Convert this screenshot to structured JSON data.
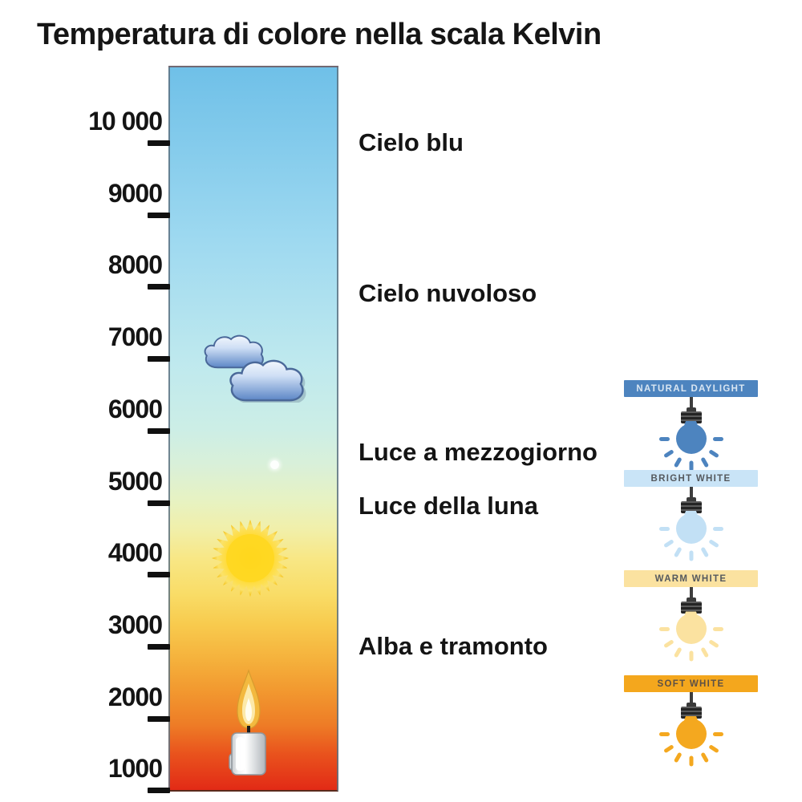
{
  "title": "Temperatura di colore nella scala Kelvin",
  "scale": {
    "unit": "Kelvin",
    "marks": [
      {
        "label": "10 000",
        "value": 10000
      },
      {
        "label": "9000",
        "value": 9000
      },
      {
        "label": "8000",
        "value": 8000
      },
      {
        "label": "7000",
        "value": 7000
      },
      {
        "label": "6000",
        "value": 6000
      },
      {
        "label": "5000",
        "value": 5000
      },
      {
        "label": "4000",
        "value": 4000
      },
      {
        "label": "3000",
        "value": 3000
      },
      {
        "label": "2000",
        "value": 2000
      },
      {
        "label": "1000",
        "value": 1000
      }
    ]
  },
  "gradient_bar": {
    "top_color": "#6fc0e8",
    "mid_color": "#f8e785",
    "bottom_color": "#e22a16"
  },
  "bar_annotations": [
    {
      "label": "Cielo blu",
      "kelvin": 10000
    },
    {
      "label": "Cielo nuvoloso",
      "kelvin": 7900
    },
    {
      "label": "Luce a mezzogiorno",
      "kelvin": 5700
    },
    {
      "label": "Luce della luna",
      "kelvin": 4950
    },
    {
      "label": "Alba e tramonto",
      "kelvin": 3000
    }
  ],
  "bar_icons": [
    {
      "name": "clouds-icon",
      "kelvin": 6900
    },
    {
      "name": "moon-dot-icon",
      "kelvin": 5520
    },
    {
      "name": "sun-icon",
      "kelvin": 4230
    },
    {
      "name": "candle-icon",
      "kelvin": 1950
    }
  ],
  "bulbs": [
    {
      "label": "NATURAL DAYLIGHT",
      "kelvin": 5800,
      "banner_color": "#4d84bf",
      "bulb_color": "#4d84bf",
      "text_color": "#d9e6f2"
    },
    {
      "label": "BRIGHT WHITE",
      "kelvin": 4550,
      "banner_color": "#c9e4f7",
      "bulb_color": "#c2e0f5",
      "text_color": "#55595e"
    },
    {
      "label": "WARM WHITE",
      "kelvin": 3150,
      "banner_color": "#fbe2a0",
      "bulb_color": "#fbe2a0",
      "text_color": "#55595e"
    },
    {
      "label": "SOFT WHITE",
      "kelvin": 1700,
      "banner_color": "#f4a71d",
      "bulb_color": "#f4a81f",
      "text_color": "#5d5146"
    }
  ]
}
